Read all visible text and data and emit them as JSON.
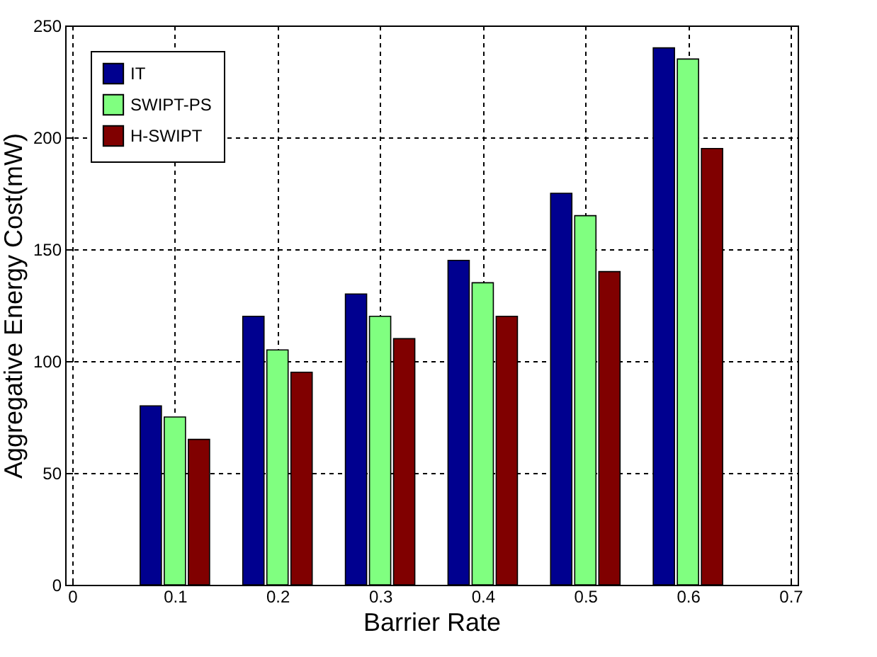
{
  "chart_data": {
    "type": "bar",
    "xlabel": "Barrier Rate",
    "ylabel": "Aggregative Energy Cost(mW)",
    "x": [
      0.1,
      0.2,
      0.3,
      0.4,
      0.5,
      0.6
    ],
    "series": [
      {
        "name": "IT",
        "color": "#00008f",
        "values": [
          80,
          120,
          130,
          145,
          175,
          240
        ]
      },
      {
        "name": "SWIPT-PS",
        "color": "#80ff80",
        "values": [
          75,
          105,
          120,
          135,
          165,
          235
        ]
      },
      {
        "name": "H-SWIPT",
        "color": "#800000",
        "values": [
          65,
          95,
          110,
          120,
          140,
          195
        ]
      }
    ],
    "xlim": [
      0,
      0.7
    ],
    "xticks": [
      0,
      0.1,
      0.2,
      0.3,
      0.4,
      0.5,
      0.6,
      0.7
    ],
    "ylim": [
      0,
      250
    ],
    "yticks": [
      0,
      50,
      100,
      150,
      200,
      250
    ],
    "grid": true,
    "legend": "top left"
  }
}
